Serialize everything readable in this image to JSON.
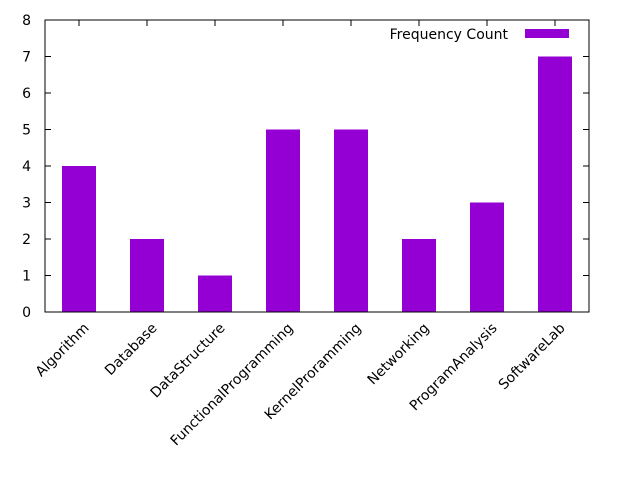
{
  "chart_data": {
    "type": "bar",
    "title": "",
    "xlabel": "",
    "ylabel": "",
    "categories": [
      "Algorithm",
      "Database",
      "DataStructure",
      "FunctionalProgramming",
      "KernelProramming",
      "Networking",
      "ProgramAnalysis",
      "SoftwareLab"
    ],
    "series": [
      {
        "name": "Frequency Count",
        "values": [
          4,
          2,
          1,
          5,
          5,
          2,
          3,
          7
        ],
        "color": "#9400d3"
      }
    ],
    "ylim": [
      0,
      8
    ],
    "yticks": [
      "0",
      "1",
      "2",
      "3",
      "4",
      "5",
      "6",
      "7",
      "8"
    ],
    "grid": false,
    "legend_position": "top-right"
  }
}
